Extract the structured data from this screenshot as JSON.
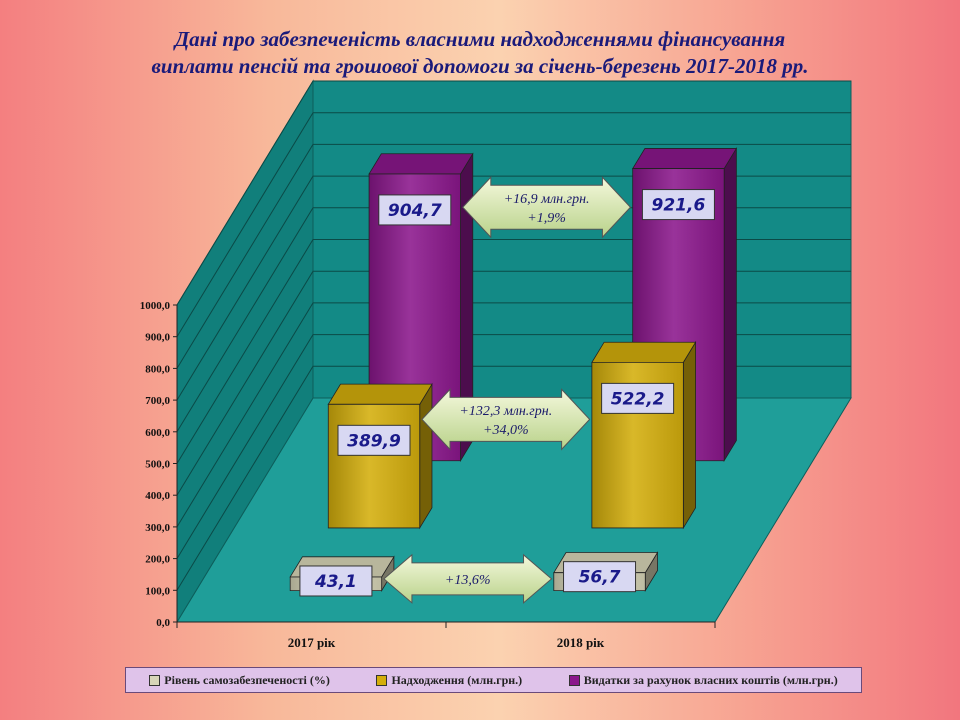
{
  "title_lines": [
    "Дані про забезпеченість власними надходженнями фінансування",
    "виплати пенсій та грошової допомоги за січень-березень 2017-2018 рр."
  ],
  "colors": {
    "floor": "#1f9e99",
    "wall": "#138a86",
    "label_bg": "#d8d8f2",
    "label_text": "#1a1a8a"
  },
  "chart_data": {
    "type": "bar",
    "categories": [
      "2017 рік",
      "2018 рік"
    ],
    "yticks": [
      "0,0",
      "100,0",
      "200,0",
      "300,0",
      "400,0",
      "500,0",
      "600,0",
      "700,0",
      "800,0",
      "900,0",
      "1000,0"
    ],
    "ylim": [
      0,
      1000
    ],
    "grid": true,
    "legend_position": "bottom",
    "series": [
      {
        "name": "Рівень самозабезпеченості (%)",
        "values": [
          43.1,
          56.7
        ],
        "labels": [
          "43,1",
          "56,7"
        ],
        "color": "#d8d6b8"
      },
      {
        "name": "Надходження (млн.грн.)",
        "values": [
          389.9,
          522.2
        ],
        "labels": [
          "389,9",
          "522,2"
        ],
        "color": "#d4ae0c"
      },
      {
        "name": "Видатки за рахунок власних коштів (млн.грн.)",
        "values": [
          904.7,
          921.6
        ],
        "labels": [
          "904,7",
          "921,6"
        ],
        "color": "#8b178c"
      }
    ],
    "annotations": [
      {
        "series": 2,
        "lines": [
          "+16,9 млн.грн.",
          "+1,9%"
        ]
      },
      {
        "series": 1,
        "lines": [
          "+132,3 млн.грн.",
          "+34,0%"
        ]
      },
      {
        "series": 0,
        "lines": [
          "+13,6%"
        ]
      }
    ]
  }
}
